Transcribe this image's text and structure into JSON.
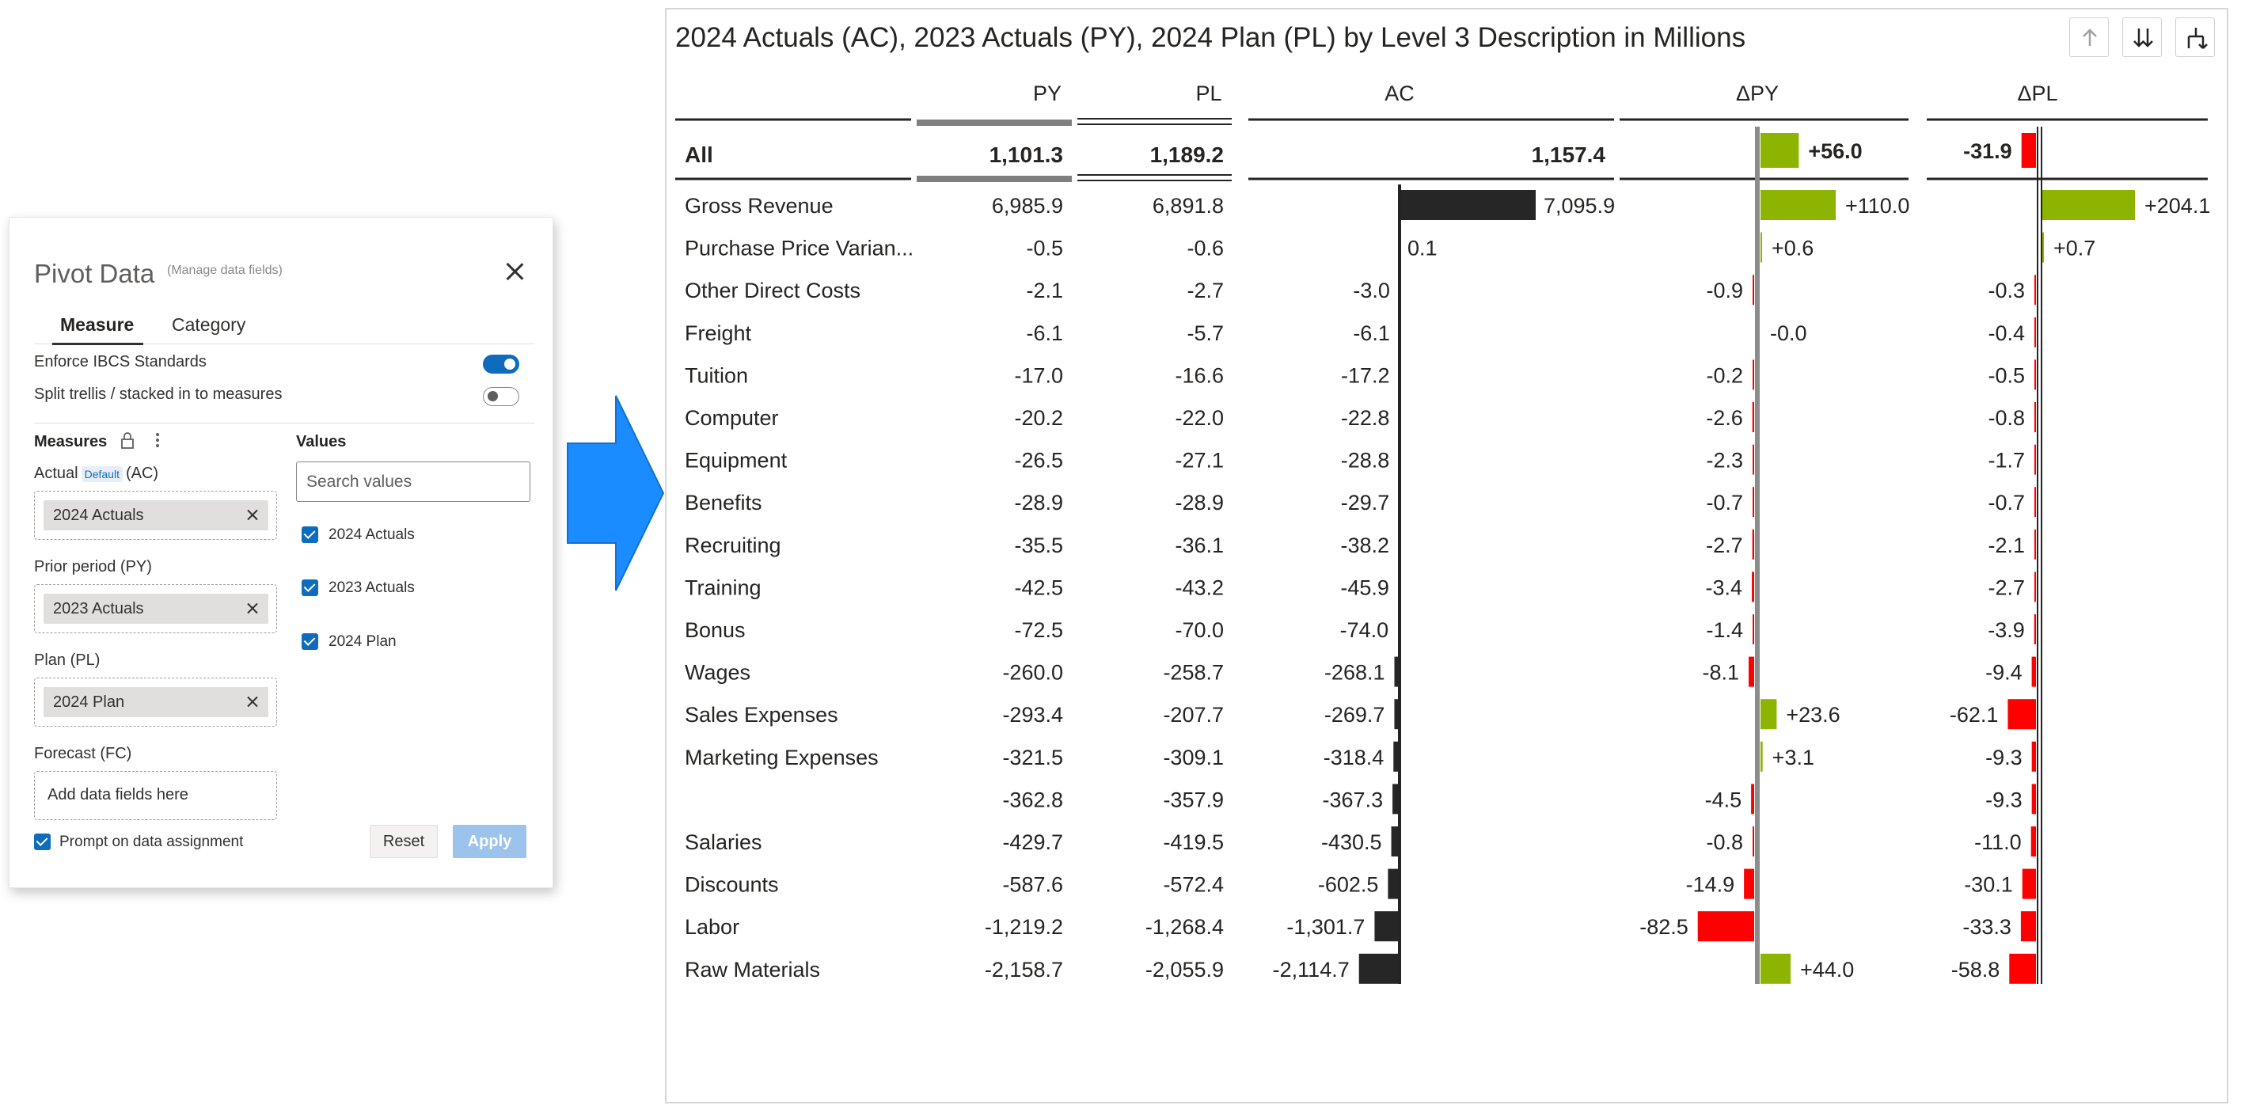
{
  "pivot_panel": {
    "title": "Pivot Data",
    "subtitle": "(Manage data fields)",
    "tabs": [
      "Measure",
      "Category"
    ],
    "active_tab": "Measure",
    "toggles": [
      {
        "label": "Enforce IBCS Standards",
        "on": true
      },
      {
        "label": "Split trellis / stacked in to measures",
        "on": false
      }
    ],
    "measures_heading": "Measures",
    "values_heading": "Values",
    "actual": {
      "label": "Actual",
      "badge": "Default",
      "suffix": "(AC)",
      "chip": "2024 Actuals"
    },
    "prior": {
      "label": "Prior period  (PY)",
      "chip": "2023 Actuals"
    },
    "plan": {
      "label": "Plan  (PL)",
      "chip": "2024 Plan"
    },
    "forecast": {
      "label": "Forecast  (FC)",
      "placeholder": "Add data fields here"
    },
    "search_placeholder": "Search values",
    "values": [
      {
        "label": "2024 Actuals",
        "checked": true
      },
      {
        "label": "2023 Actuals",
        "checked": true
      },
      {
        "label": "2024 Plan",
        "checked": true
      }
    ],
    "prompt_label": "Prompt on data assignment",
    "prompt_checked": true,
    "reset_label": "Reset",
    "apply_label": "Apply"
  },
  "colors": {
    "accent": "#0f6cbd",
    "arrow": "#1a8cff",
    "ac_bar": "#262626",
    "positive": "#8cb400",
    "negative": "#ff0000"
  },
  "visual": {
    "title": "2024 Actuals (AC), 2023 Actuals (PY), 2024 Plan (PL) by Level 3 Description in Millions",
    "toolbar_icons": [
      "drill-up-icon",
      "expand-all-icon",
      "hierarchy-icon"
    ]
  },
  "chart_data": {
    "type": "table",
    "columns": [
      "PY",
      "PL",
      "AC",
      "ΔPY",
      "ΔPL"
    ],
    "total": {
      "label": "All",
      "py": "1,101.3",
      "pl": "1,189.2",
      "ac": "1,157.4",
      "dpy": "+56.0",
      "dpl": "-31.9",
      "dpy_value": 56.0,
      "dpl_value": -31.9
    },
    "rows": [
      {
        "label": "Gross Revenue",
        "py": "6,985.9",
        "pl": "6,891.8",
        "ac": "7,095.9",
        "dpy": "+110.0",
        "dpl": "+204.1",
        "ac_value": 7095.9,
        "dpy_value": 110.0,
        "dpl_value": 204.1
      },
      {
        "label": "Purchase Price Varian...",
        "py": "-0.5",
        "pl": "-0.6",
        "ac": "0.1",
        "dpy": "+0.6",
        "dpl": "+0.7",
        "ac_value": 0.1,
        "dpy_value": 0.6,
        "dpl_value": 0.7
      },
      {
        "label": "Other Direct Costs",
        "py": "-2.1",
        "pl": "-2.7",
        "ac": "-3.0",
        "dpy": "-0.9",
        "dpl": "-0.3",
        "ac_value": -3.0,
        "dpy_value": -0.9,
        "dpl_value": -0.3
      },
      {
        "label": "Freight",
        "py": "-6.1",
        "pl": "-5.7",
        "ac": "-6.1",
        "dpy": "-0.0",
        "dpl": "-0.4",
        "ac_value": -6.1,
        "dpy_value": -0.0,
        "dpl_value": -0.4
      },
      {
        "label": "Tuition",
        "py": "-17.0",
        "pl": "-16.6",
        "ac": "-17.2",
        "dpy": "-0.2",
        "dpl": "-0.5",
        "ac_value": -17.2,
        "dpy_value": -0.2,
        "dpl_value": -0.5
      },
      {
        "label": "Computer",
        "py": "-20.2",
        "pl": "-22.0",
        "ac": "-22.8",
        "dpy": "-2.6",
        "dpl": "-0.8",
        "ac_value": -22.8,
        "dpy_value": -2.6,
        "dpl_value": -0.8
      },
      {
        "label": "Equipment",
        "py": "-26.5",
        "pl": "-27.1",
        "ac": "-28.8",
        "dpy": "-2.3",
        "dpl": "-1.7",
        "ac_value": -28.8,
        "dpy_value": -2.3,
        "dpl_value": -1.7
      },
      {
        "label": "Benefits",
        "py": "-28.9",
        "pl": "-28.9",
        "ac": "-29.7",
        "dpy": "-0.7",
        "dpl": "-0.7",
        "ac_value": -29.7,
        "dpy_value": -0.7,
        "dpl_value": -0.7
      },
      {
        "label": "Recruiting",
        "py": "-35.5",
        "pl": "-36.1",
        "ac": "-38.2",
        "dpy": "-2.7",
        "dpl": "-2.1",
        "ac_value": -38.2,
        "dpy_value": -2.7,
        "dpl_value": -2.1
      },
      {
        "label": "Training",
        "py": "-42.5",
        "pl": "-43.2",
        "ac": "-45.9",
        "dpy": "-3.4",
        "dpl": "-2.7",
        "ac_value": -45.9,
        "dpy_value": -3.4,
        "dpl_value": -2.7
      },
      {
        "label": "Bonus",
        "py": "-72.5",
        "pl": "-70.0",
        "ac": "-74.0",
        "dpy": "-1.4",
        "dpl": "-3.9",
        "ac_value": -74.0,
        "dpy_value": -1.4,
        "dpl_value": -3.9
      },
      {
        "label": "Wages",
        "py": "-260.0",
        "pl": "-258.7",
        "ac": "-268.1",
        "dpy": "-8.1",
        "dpl": "-9.4",
        "ac_value": -268.1,
        "dpy_value": -8.1,
        "dpl_value": -9.4
      },
      {
        "label": "Sales Expenses",
        "py": "-293.4",
        "pl": "-207.7",
        "ac": "-269.7",
        "dpy": "+23.6",
        "dpl": "-62.1",
        "ac_value": -269.7,
        "dpy_value": 23.6,
        "dpl_value": -62.1
      },
      {
        "label": "Marketing Expenses",
        "py": "-321.5",
        "pl": "-309.1",
        "ac": "-318.4",
        "dpy": "+3.1",
        "dpl": "-9.3",
        "ac_value": -318.4,
        "dpy_value": 3.1,
        "dpl_value": -9.3
      },
      {
        "label": "",
        "py": "-362.8",
        "pl": "-357.9",
        "ac": "-367.3",
        "dpy": "-4.5",
        "dpl": "-9.3",
        "ac_value": -367.3,
        "dpy_value": -4.5,
        "dpl_value": -9.3
      },
      {
        "label": "Salaries",
        "py": "-429.7",
        "pl": "-419.5",
        "ac": "-430.5",
        "dpy": "-0.8",
        "dpl": "-11.0",
        "ac_value": -430.5,
        "dpy_value": -0.8,
        "dpl_value": -11.0
      },
      {
        "label": "Discounts",
        "py": "-587.6",
        "pl": "-572.4",
        "ac": "-602.5",
        "dpy": "-14.9",
        "dpl": "-30.1",
        "ac_value": -602.5,
        "dpy_value": -14.9,
        "dpl_value": -30.1
      },
      {
        "label": "Labor",
        "py": "-1,219.2",
        "pl": "-1,268.4",
        "ac": "-1,301.7",
        "dpy": "-82.5",
        "dpl": "-33.3",
        "ac_value": -1301.7,
        "dpy_value": -82.5,
        "dpl_value": -33.3
      },
      {
        "label": "Raw Materials",
        "py": "-2,158.7",
        "pl": "-2,055.9",
        "ac": "-2,114.7",
        "dpy": "+44.0",
        "dpl": "-58.8",
        "ac_value": -2114.7,
        "dpy_value": 44.0,
        "dpl_value": -58.8
      }
    ]
  }
}
